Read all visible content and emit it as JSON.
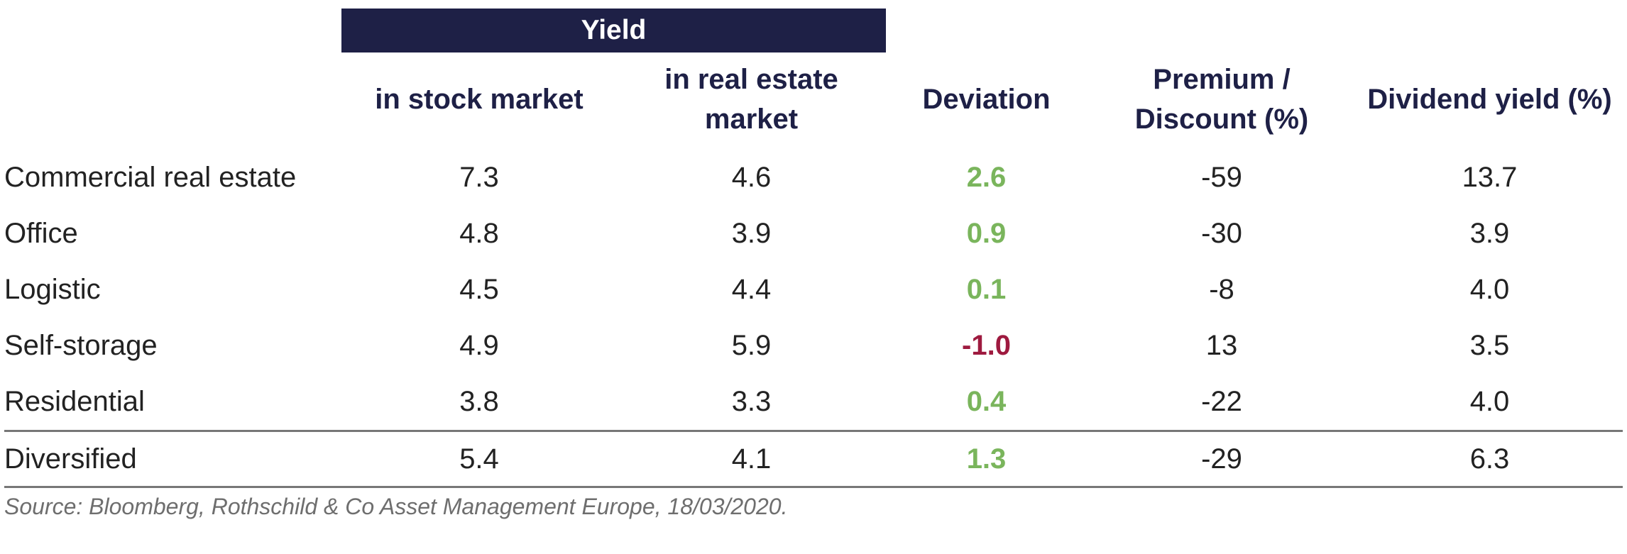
{
  "chart_data": {
    "type": "table",
    "group_header": "Yield",
    "columns": [
      "in stock market",
      "in real estate market",
      "Deviation",
      "Premium / Discount (%)",
      "Dividend yield (%)"
    ],
    "rows": [
      {
        "label": "Commercial real estate",
        "values": [
          "7.3",
          "4.6",
          "2.6",
          "-59",
          "13.7"
        ],
        "deviation_sign": "positive"
      },
      {
        "label": "Office",
        "values": [
          "4.8",
          "3.9",
          "0.9",
          "-30",
          "3.9"
        ],
        "deviation_sign": "positive"
      },
      {
        "label": "Logistic",
        "values": [
          "4.5",
          "4.4",
          "0.1",
          "-8",
          "4.0"
        ],
        "deviation_sign": "positive"
      },
      {
        "label": "Self-storage",
        "values": [
          "4.9",
          "5.9",
          "-1.0",
          "13",
          "3.5"
        ],
        "deviation_sign": "negative"
      },
      {
        "label": "Residential",
        "values": [
          "3.8",
          "3.3",
          "0.4",
          "-22",
          "4.0"
        ],
        "deviation_sign": "positive"
      }
    ],
    "total_row": {
      "label": "Diversified",
      "values": [
        "5.4",
        "4.1",
        "1.3",
        "-29",
        "6.3"
      ],
      "deviation_sign": "positive"
    },
    "source": "Source: Bloomberg, Rothschild & Co Asset Management Europe, 18/03/2020."
  },
  "colors": {
    "header_band": "#1e2046",
    "header_text": "#1e2046",
    "positive_deviation": "#7ab55c",
    "negative_deviation": "#9e1a3f",
    "rule": "#777777"
  }
}
